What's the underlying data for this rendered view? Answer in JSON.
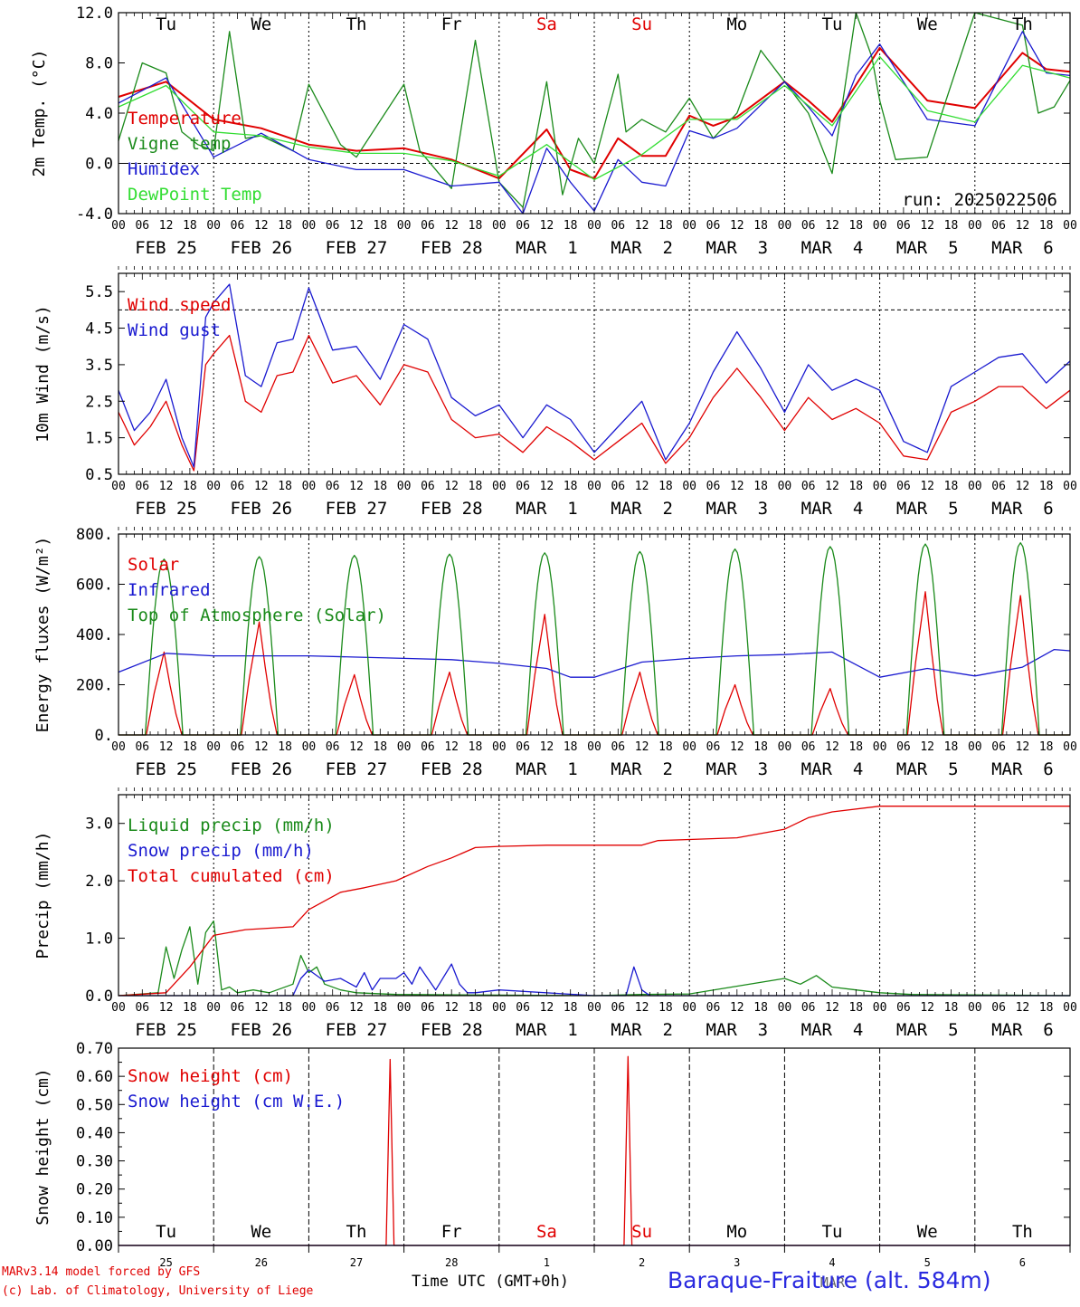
{
  "colors": {
    "red": "#e00000",
    "green": "#1a8a1a",
    "blue": "#1a1ad0",
    "lightgreen": "#33dd33",
    "weekend": "#e00000",
    "station": "#2a2adf"
  },
  "footer": {
    "credit_line1": "MARv3.14 model forced by GFS",
    "credit_line2": "(c) Lab. of Climatology, University of Liege",
    "x_axis_title": "Time UTC (GMT+0h)",
    "station": "Baraque-Fraiture (alt. 584m)"
  },
  "chart_data": [
    {
      "type": "line",
      "ylabel": "2m Temp. (°C)",
      "ylim": [
        -4,
        12
      ],
      "yticks": [
        -4,
        0,
        4,
        8,
        12
      ],
      "ytick_labels": [
        "-4.0",
        "0.0",
        "4.0",
        "8.0",
        "12.0"
      ],
      "dashed_y": [
        0
      ],
      "run_label": "run: 2025022506",
      "weekdays": [
        "Tu",
        "We",
        "Th",
        "Fr",
        "Sa",
        "Su",
        "Mo",
        "Tu",
        "We",
        "Th"
      ],
      "weekend_days": [
        4,
        5
      ],
      "hour_ticks": [
        "00",
        "06",
        "12",
        "18"
      ],
      "dates": [
        "FEB 25",
        "FEB 26",
        "FEB 27",
        "FEB 28",
        "MAR  1",
        "MAR  2",
        "MAR  3",
        "MAR  4",
        "MAR  5",
        "MAR  6"
      ],
      "x_hours_range": [
        0,
        240
      ],
      "series": [
        {
          "name": "Temperature",
          "color": "red",
          "x": [
            0,
            12,
            24,
            36,
            48,
            60,
            72,
            84,
            96,
            108,
            114,
            120,
            126,
            132,
            138,
            144,
            150,
            156,
            168,
            174,
            180,
            192,
            204,
            216,
            228,
            234,
            240
          ],
          "y": [
            5.3,
            6.5,
            3.5,
            2.8,
            1.5,
            1.0,
            1.2,
            0.3,
            -1.2,
            2.7,
            -0.5,
            -1.2,
            2.0,
            0.6,
            0.6,
            3.8,
            3.0,
            3.7,
            6.5,
            5.0,
            3.3,
            9.2,
            5.0,
            4.4,
            8.8,
            7.5,
            7.3
          ]
        },
        {
          "name": "Vigne temp",
          "color": "green",
          "x": [
            0,
            6,
            12,
            16,
            20,
            24,
            28,
            32,
            36,
            44,
            48,
            56,
            60,
            72,
            76,
            84,
            90,
            96,
            102,
            108,
            112,
            116,
            120,
            126,
            128,
            132,
            138,
            144,
            150,
            156,
            162,
            168,
            174,
            180,
            186,
            190,
            192,
            196,
            204,
            216,
            228,
            232,
            236,
            240
          ],
          "y": [
            1.8,
            8.0,
            7.2,
            2.5,
            1.5,
            1.0,
            10.5,
            2.0,
            2.2,
            1.0,
            6.3,
            1.5,
            0.5,
            6.3,
            1.0,
            -2.0,
            9.8,
            -1.5,
            -3.5,
            6.5,
            -2.5,
            2.0,
            0.0,
            7.1,
            2.5,
            3.5,
            2.5,
            5.2,
            2.0,
            4.0,
            9.0,
            6.5,
            4.0,
            -0.8,
            12.5,
            8.5,
            5.0,
            0.3,
            0.5,
            12.5,
            11.0,
            4.0,
            4.5,
            6.6
          ]
        },
        {
          "name": "Humidex",
          "color": "blue",
          "x": [
            0,
            12,
            24,
            36,
            48,
            60,
            72,
            84,
            96,
            102,
            108,
            114,
            120,
            126,
            132,
            138,
            144,
            150,
            156,
            168,
            174,
            180,
            186,
            192,
            204,
            216,
            228,
            234,
            240
          ],
          "y": [
            4.8,
            6.8,
            0.5,
            2.4,
            0.3,
            -0.5,
            -0.5,
            -1.8,
            -1.5,
            -4.0,
            1.2,
            -1.5,
            -3.8,
            0.3,
            -1.5,
            -1.8,
            2.6,
            2.0,
            2.8,
            6.5,
            4.5,
            2.2,
            7.0,
            9.5,
            3.5,
            3.0,
            10.5,
            7.2,
            7.0
          ]
        },
        {
          "name": "DewPoint Temp",
          "color": "lightgreen",
          "x": [
            0,
            12,
            24,
            36,
            48,
            60,
            72,
            84,
            96,
            108,
            120,
            132,
            144,
            156,
            168,
            180,
            192,
            204,
            216,
            228,
            240
          ],
          "y": [
            4.5,
            6.2,
            2.5,
            2.2,
            1.3,
            0.8,
            0.8,
            0.2,
            -1.0,
            1.5,
            -1.3,
            0.7,
            3.5,
            3.5,
            6.2,
            3.0,
            8.5,
            4.2,
            3.3,
            7.8,
            6.8
          ]
        }
      ]
    },
    {
      "type": "line",
      "ylabel": "10m Wind (m/s)",
      "ylim": [
        0.5,
        6
      ],
      "yticks": [
        0.5,
        1.5,
        2.5,
        3.5,
        4.5,
        5.5
      ],
      "ytick_labels": [
        "0.5",
        "1.5",
        "2.5",
        "3.5",
        "4.5",
        "5.5"
      ],
      "dashed_y": [
        5.0
      ],
      "series": [
        {
          "name": "Wind speed",
          "color": "red",
          "x": [
            0,
            4,
            8,
            12,
            16,
            19,
            22,
            24,
            28,
            32,
            36,
            40,
            44,
            48,
            54,
            60,
            66,
            72,
            78,
            84,
            90,
            96,
            102,
            108,
            114,
            120,
            126,
            132,
            138,
            144,
            150,
            156,
            162,
            168,
            174,
            180,
            186,
            192,
            198,
            204,
            210,
            216,
            222,
            228,
            234,
            240
          ],
          "y": [
            2.2,
            1.3,
            1.8,
            2.5,
            1.3,
            0.6,
            3.5,
            3.8,
            4.3,
            2.5,
            2.2,
            3.2,
            3.3,
            4.3,
            3.0,
            3.2,
            2.4,
            3.5,
            3.3,
            2.0,
            1.5,
            1.6,
            1.1,
            1.8,
            1.4,
            0.9,
            1.4,
            1.9,
            0.8,
            1.5,
            2.6,
            3.4,
            2.6,
            1.7,
            2.6,
            2.0,
            2.3,
            1.9,
            1.0,
            0.9,
            2.2,
            2.5,
            2.9,
            2.9,
            2.3,
            2.8
          ]
        },
        {
          "name": "Wind gust",
          "color": "blue",
          "x": [
            0,
            4,
            8,
            12,
            16,
            19,
            22,
            24,
            28,
            32,
            36,
            40,
            44,
            48,
            54,
            60,
            66,
            72,
            78,
            84,
            90,
            96,
            102,
            108,
            114,
            120,
            126,
            132,
            138,
            144,
            150,
            156,
            162,
            168,
            174,
            180,
            186,
            192,
            198,
            204,
            210,
            216,
            222,
            228,
            234,
            240
          ],
          "y": [
            2.8,
            1.7,
            2.2,
            3.1,
            1.5,
            0.7,
            4.8,
            5.2,
            5.7,
            3.2,
            2.9,
            4.1,
            4.2,
            5.6,
            3.9,
            4.0,
            3.1,
            4.6,
            4.2,
            2.6,
            2.1,
            2.4,
            1.5,
            2.4,
            2.0,
            1.1,
            1.8,
            2.5,
            0.9,
            1.9,
            3.3,
            4.4,
            3.4,
            2.2,
            3.5,
            2.8,
            3.1,
            2.8,
            1.4,
            1.1,
            2.9,
            3.3,
            3.7,
            3.8,
            3.0,
            3.6
          ]
        }
      ]
    },
    {
      "type": "line",
      "ylabel": "Energy fluxes (W/m²)",
      "ylim": [
        0,
        800
      ],
      "yticks": [
        0,
        200,
        400,
        600,
        800
      ],
      "ytick_labels": [
        "0.",
        "200.",
        "400.",
        "600.",
        "800."
      ],
      "daily_peak_hour": 11.5,
      "series": [
        {
          "name": "Solar",
          "color": "red",
          "daily_peaks": [
            330,
            450,
            240,
            250,
            480,
            250,
            200,
            185,
            570,
            555
          ]
        },
        {
          "name": "Infrared",
          "color": "blue",
          "x": [
            0,
            12,
            24,
            48,
            60,
            72,
            84,
            96,
            108,
            114,
            120,
            132,
            144,
            156,
            168,
            180,
            192,
            204,
            216,
            228,
            236,
            240
          ],
          "y": [
            250,
            325,
            315,
            315,
            310,
            305,
            300,
            285,
            265,
            230,
            230,
            290,
            305,
            315,
            320,
            330,
            230,
            265,
            235,
            270,
            340,
            335
          ]
        },
        {
          "name": "Top of Atmosphere (Solar)",
          "color": "green",
          "daily_peaks": [
            700,
            710,
            715,
            720,
            725,
            730,
            740,
            750,
            760,
            765
          ],
          "day_length_hours": 9.5
        }
      ]
    },
    {
      "type": "line",
      "ylabel": "Precip (mm/h)",
      "ylim": [
        0,
        3.5
      ],
      "yticks": [
        0,
        1,
        2,
        3
      ],
      "ytick_labels": [
        "0.0",
        "1.0",
        "2.0",
        "3.0"
      ],
      "series": [
        {
          "name": "Liquid precip (mm/h)",
          "color": "green",
          "x": [
            0,
            10,
            12,
            14,
            16,
            18,
            20,
            22,
            24,
            26,
            28,
            30,
            34,
            38,
            44,
            46,
            48,
            50,
            52,
            56,
            60,
            70,
            120,
            132,
            144,
            168,
            172,
            176,
            180,
            186,
            192,
            200,
            240
          ],
          "y": [
            0,
            0.05,
            0.85,
            0.3,
            0.8,
            1.2,
            0.2,
            1.1,
            1.3,
            0.1,
            0.15,
            0.05,
            0.1,
            0.05,
            0.2,
            0.7,
            0.4,
            0.5,
            0.2,
            0.1,
            0.05,
            0.02,
            0,
            0.02,
            0.03,
            0.3,
            0.2,
            0.35,
            0.15,
            0.1,
            0.05,
            0.02,
            0
          ]
        },
        {
          "name": "Snow precip (mm/h)",
          "color": "blue",
          "x": [
            0,
            44,
            46,
            48,
            52,
            56,
            60,
            62,
            64,
            66,
            70,
            72,
            74,
            76,
            78,
            80,
            84,
            86,
            88,
            90,
            96,
            120,
            128,
            130,
            132,
            134,
            140,
            240
          ],
          "y": [
            0,
            0,
            0.3,
            0.45,
            0.25,
            0.3,
            0.15,
            0.4,
            0.1,
            0.3,
            0.3,
            0.4,
            0.2,
            0.5,
            0.3,
            0.1,
            0.55,
            0.2,
            0.05,
            0.05,
            0.1,
            0,
            0,
            0.5,
            0.1,
            0,
            0,
            0
          ]
        },
        {
          "name": "Total cumulated (cm)",
          "color": "red",
          "x": [
            0,
            12,
            18,
            24,
            32,
            44,
            48,
            56,
            62,
            70,
            78,
            84,
            90,
            96,
            108,
            132,
            136,
            144,
            156,
            168,
            174,
            180,
            192,
            204,
            216,
            228,
            240
          ],
          "y": [
            0,
            0.05,
            0.5,
            1.05,
            1.15,
            1.2,
            1.5,
            1.8,
            1.88,
            2.0,
            2.25,
            2.4,
            2.58,
            2.6,
            2.62,
            2.62,
            2.7,
            2.72,
            2.75,
            2.9,
            3.1,
            3.2,
            3.3,
            3.3,
            3.3,
            3.3,
            3.3
          ]
        }
      ]
    },
    {
      "type": "line",
      "ylabel": "Snow height (cm)",
      "ylim": [
        0,
        0.7
      ],
      "yticks": [
        0,
        0.1,
        0.2,
        0.3,
        0.4,
        0.5,
        0.6,
        0.7
      ],
      "ytick_labels": [
        "0.00",
        "0.10",
        "0.20",
        "0.30",
        "0.40",
        "0.50",
        "0.60",
        "0.70"
      ],
      "weekdays": [
        "Tu",
        "We",
        "Th",
        "Fr",
        "Sa",
        "Su",
        "Mo",
        "Tu",
        "We",
        "Th"
      ],
      "weekend_days": [
        4,
        5
      ],
      "day_numbers": [
        "25",
        "26",
        "27",
        "28",
        "1",
        "2",
        "3",
        "4",
        "5",
        "6"
      ],
      "month_label": "MAR",
      "series": [
        {
          "name": "Snow height (cm)",
          "color": "red",
          "x": [
            0,
            67.5,
            68.5,
            69.5,
            127.5,
            128.5,
            129.5,
            240
          ],
          "y": [
            0,
            0,
            0.66,
            0,
            0,
            0.67,
            0,
            0
          ]
        },
        {
          "name": "Snow height (cm W.E.)",
          "color": "blue",
          "x": [
            0,
            240
          ],
          "y": [
            0,
            0
          ]
        }
      ]
    }
  ]
}
